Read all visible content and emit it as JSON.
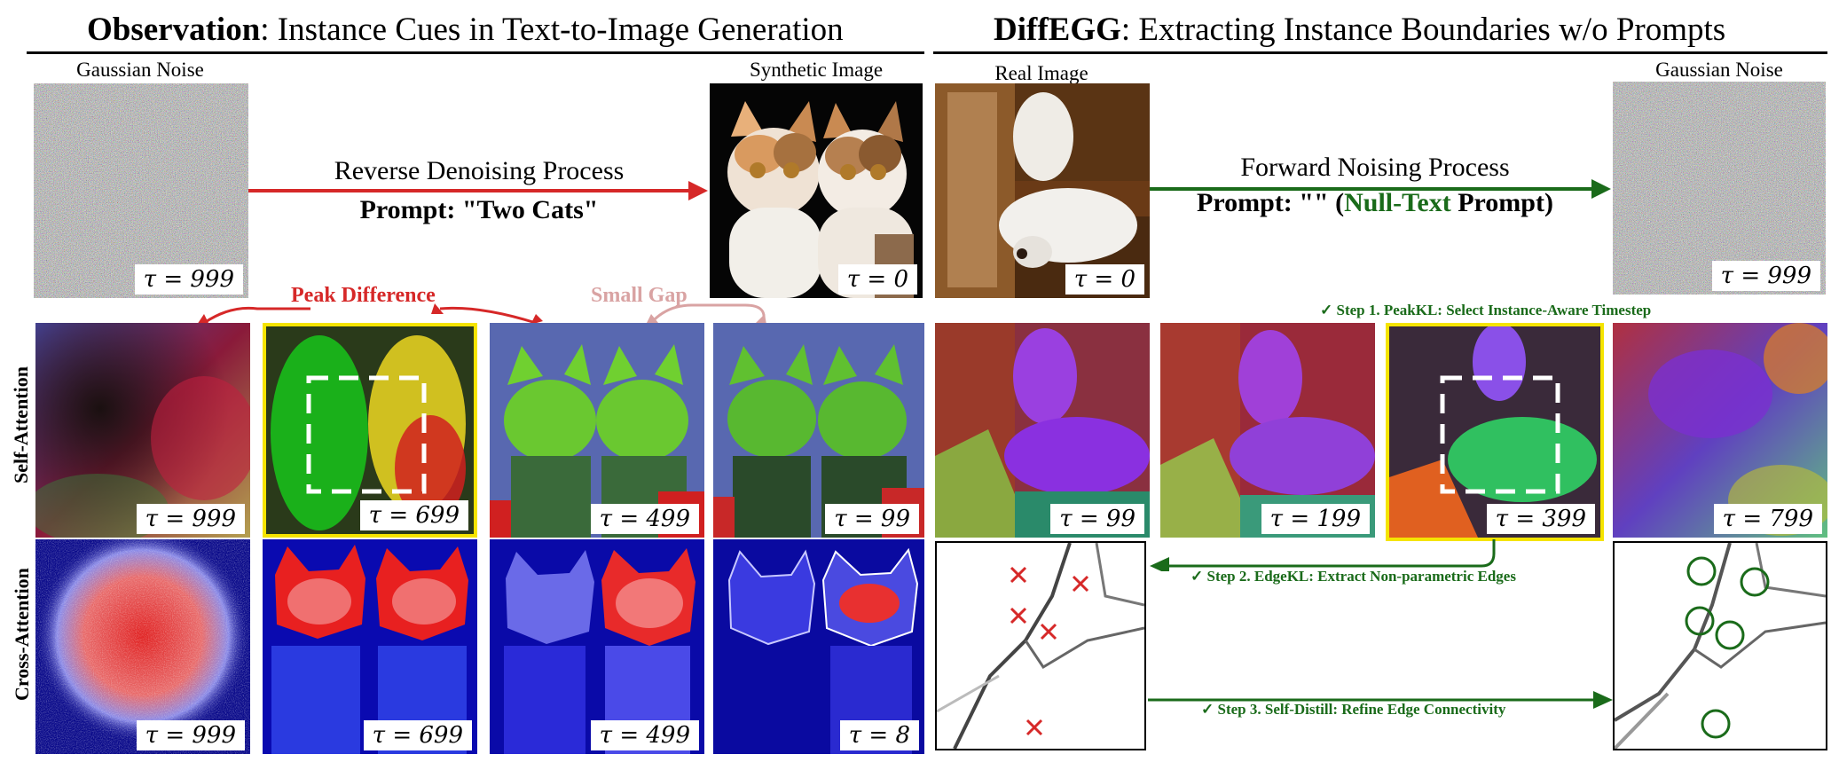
{
  "left_title": {
    "bold": "Observation",
    "rest": ": Instance Cues in Text-to-Image Generation"
  },
  "right_title": {
    "bold": "DiffEGG",
    "rest": ": Extracting Instance Boundaries w/o Prompts"
  },
  "top_left": {
    "noise_caption": "Gaussian Noise",
    "noise_tau": "τ = 999",
    "process": "Reverse Denoising Process",
    "prompt": "Prompt: \"Two Cats\"",
    "synthetic_caption": "Synthetic Image",
    "synthetic_tau": "τ = 0"
  },
  "top_right": {
    "real_caption": "Real Image",
    "real_tau": "τ = 0",
    "process": "Forward Noising Process",
    "prompt_pre": "Prompt: \"\" (",
    "prompt_green": "Null-Text",
    "prompt_post": " Prompt)",
    "noise_caption": "Gaussian Noise",
    "noise_tau": "τ = 999"
  },
  "annotations": {
    "peak_difference": "Peak Difference",
    "small_gap": "Small Gap"
  },
  "row_labels": {
    "self_attention": "Self-Attention",
    "cross_attention": "Cross-Attention"
  },
  "self_attention_left_taus": [
    "τ = 999",
    "τ = 699",
    "τ = 499",
    "τ = 99"
  ],
  "cross_attention_taus": [
    "τ = 999",
    "τ = 699",
    "τ = 499",
    "τ = 8"
  ],
  "self_attention_right_taus": [
    "τ = 99",
    "τ = 199",
    "τ = 399",
    "τ = 799"
  ],
  "steps": {
    "step1": "✓ Step 1. PeakKL: Select Instance-Aware Timestep",
    "step2": "✓ Step 2. EdgeKL: Extract Non-parametric Edges",
    "step3": "✓ Step 3. Self-Distill: Refine Edge Connectivity"
  },
  "colors": {
    "red_arrow": "#d62828",
    "pink_arrow": "#d9a3a3",
    "green_arrow": "#1a6b1a",
    "highlight": "#f5e400"
  }
}
